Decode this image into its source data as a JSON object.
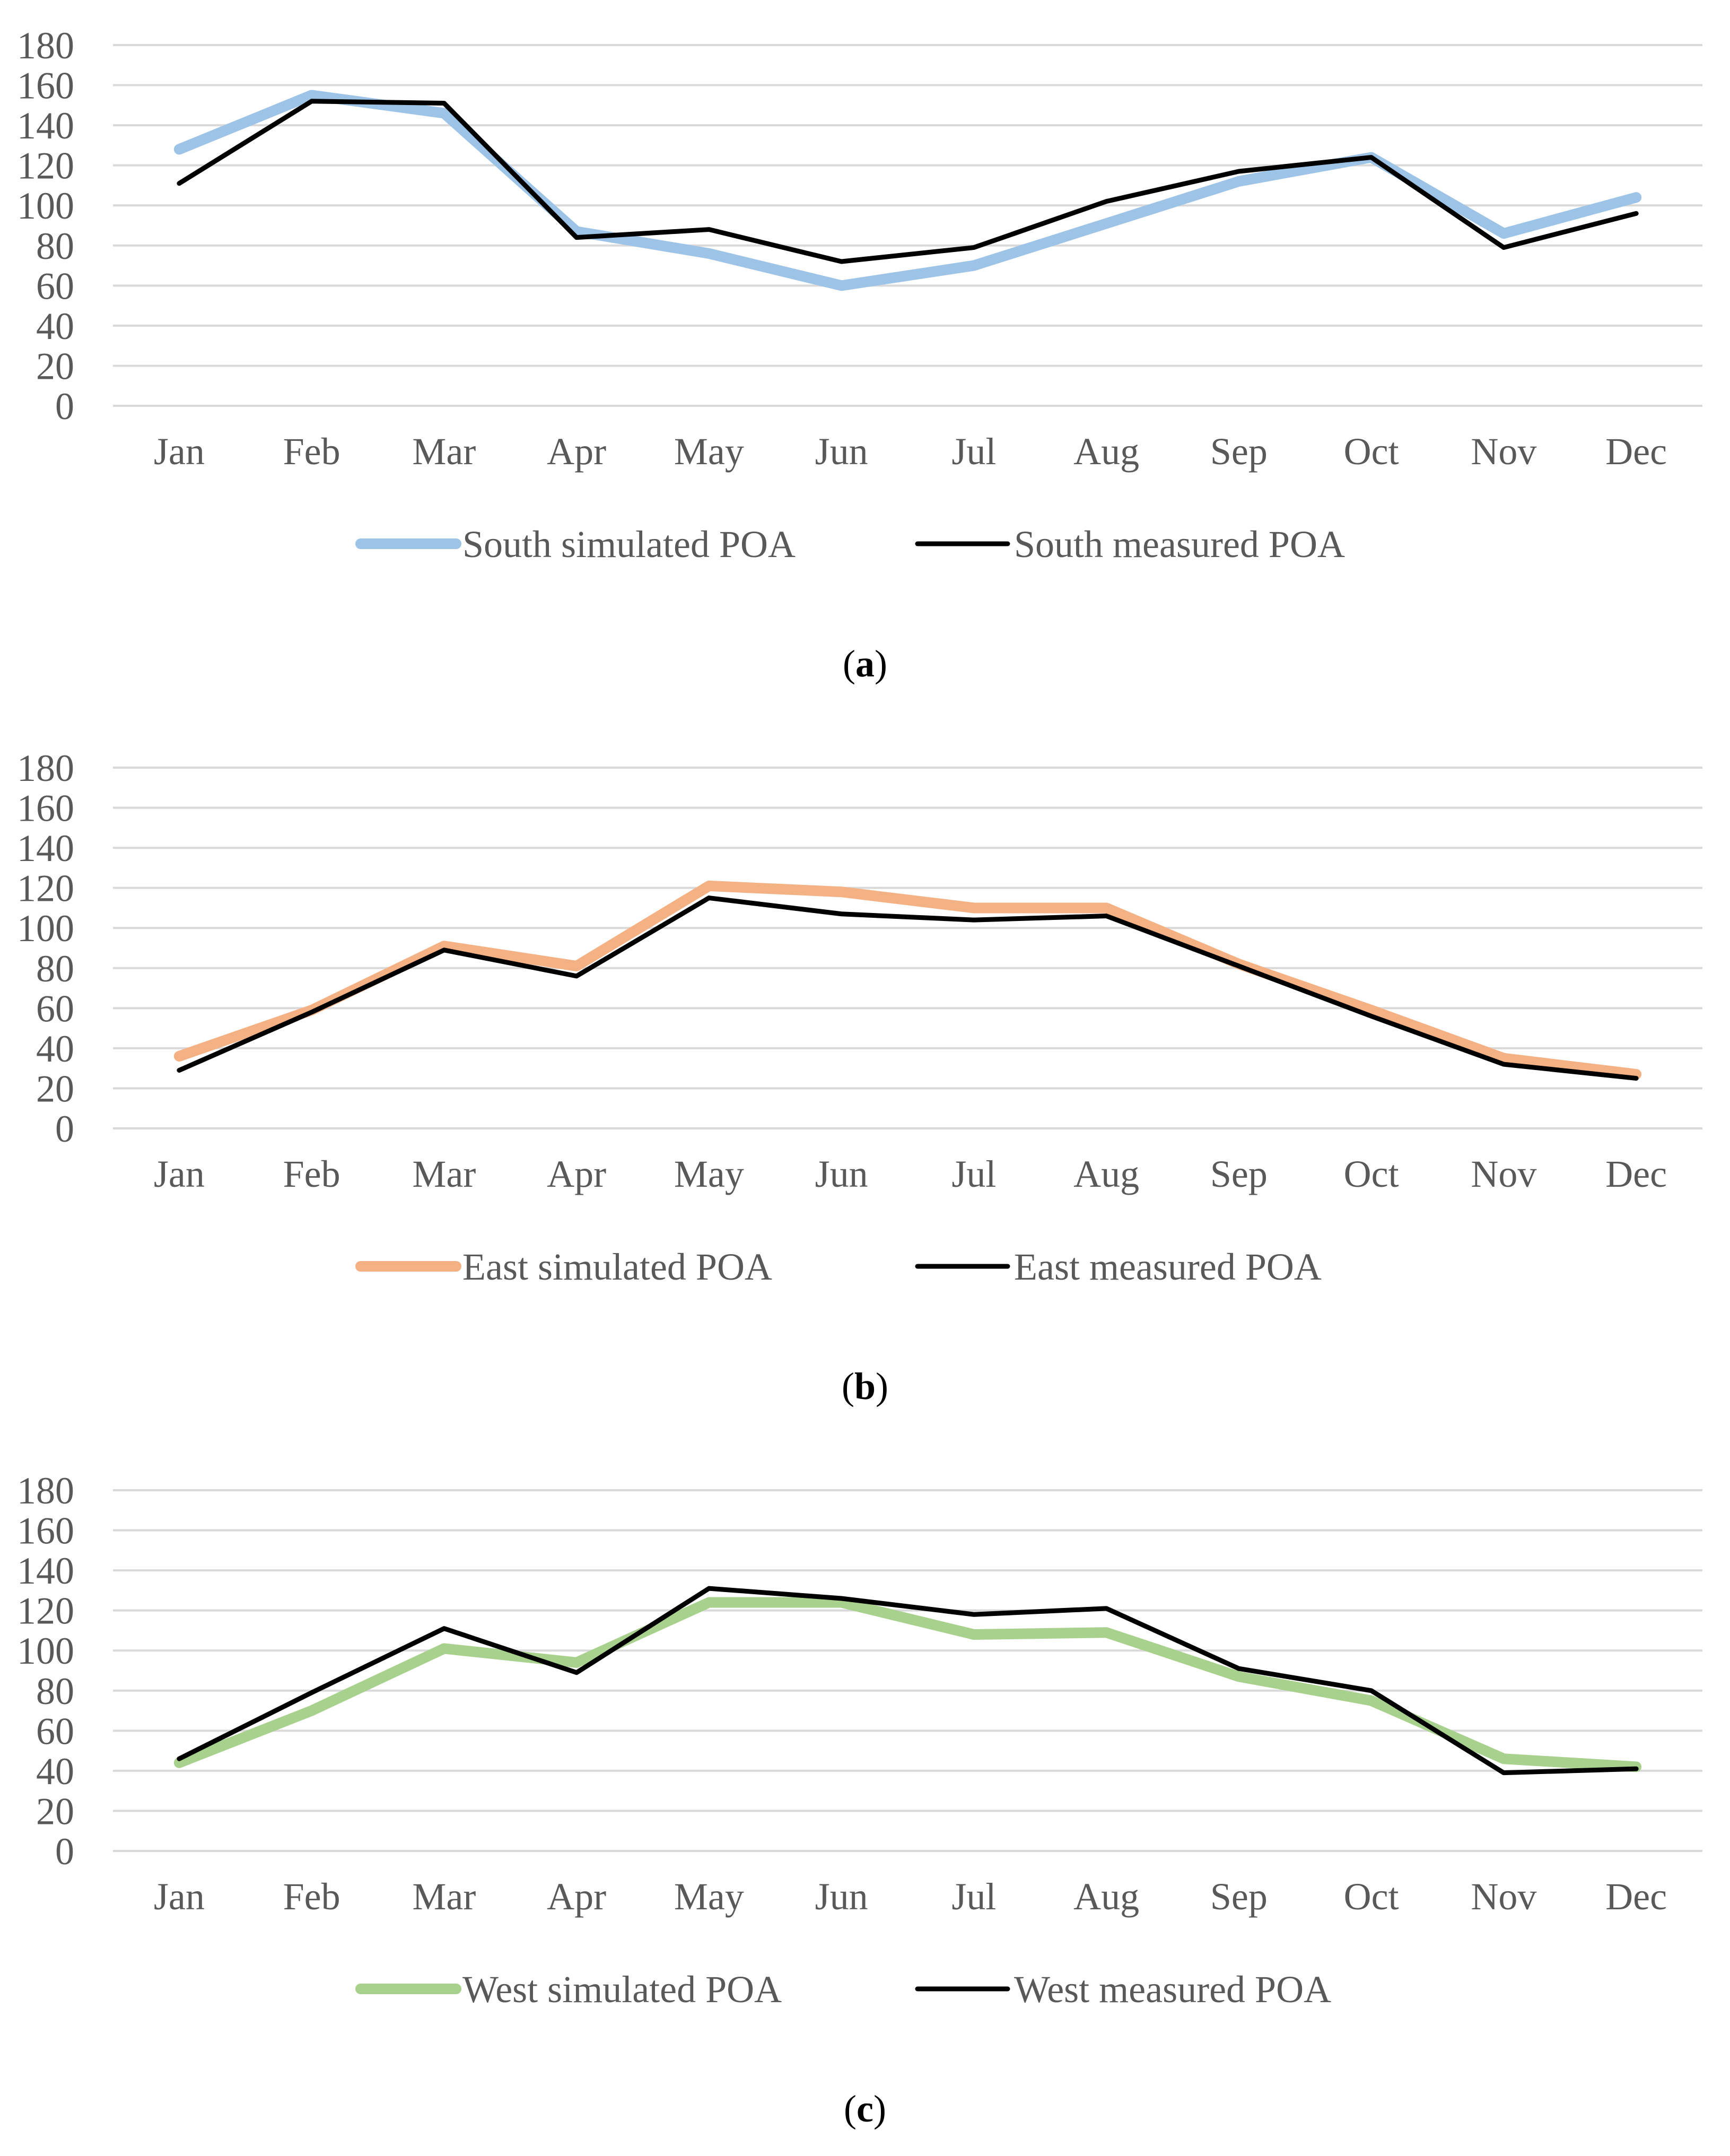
{
  "figure": {
    "panels": [
      {
        "caption_letter": "a",
        "caption_open": "(",
        "caption_close": ")"
      },
      {
        "caption_letter": "b",
        "caption_open": "(",
        "caption_close": ")"
      },
      {
        "caption_letter": "c",
        "caption_open": "(",
        "caption_close": ")"
      }
    ]
  },
  "chart_data": [
    {
      "type": "line",
      "title": "",
      "xlabel": "",
      "ylabel": "",
      "categories": [
        "Jan",
        "Feb",
        "Mar",
        "Apr",
        "May",
        "Jun",
        "Jul",
        "Aug",
        "Sep",
        "Oct",
        "Nov",
        "Dec"
      ],
      "ylim": [
        0,
        180
      ],
      "yticks": [
        0,
        20,
        40,
        60,
        80,
        100,
        120,
        140,
        160,
        180
      ],
      "grid": true,
      "legend_position": "bottom",
      "series": [
        {
          "name": "South simulated POA",
          "color": "#9DC3E6",
          "values": [
            128,
            155,
            146,
            87,
            76,
            60,
            70,
            91,
            112,
            124,
            86,
            104
          ]
        },
        {
          "name": "South measured POA",
          "color": "#000000",
          "values": [
            111,
            152,
            151,
            84,
            88,
            72,
            79,
            102,
            117,
            124,
            79,
            96
          ]
        }
      ]
    },
    {
      "type": "line",
      "title": "",
      "xlabel": "",
      "ylabel": "",
      "categories": [
        "Jan",
        "Feb",
        "Mar",
        "Apr",
        "May",
        "Jun",
        "Jul",
        "Aug",
        "Sep",
        "Oct",
        "Nov",
        "Dec"
      ],
      "ylim": [
        0,
        180
      ],
      "yticks": [
        0,
        20,
        40,
        60,
        80,
        100,
        120,
        140,
        160,
        180
      ],
      "grid": true,
      "legend_position": "bottom",
      "series": [
        {
          "name": "East simulated POA",
          "color": "#F4B183",
          "values": [
            36,
            59,
            91,
            81,
            121,
            118,
            110,
            110,
            82,
            59,
            35,
            27
          ]
        },
        {
          "name": "East measured POA",
          "color": "#000000",
          "values": [
            29,
            58,
            89,
            76,
            115,
            107,
            104,
            106,
            81,
            56,
            32,
            25
          ]
        }
      ]
    },
    {
      "type": "line",
      "title": "",
      "xlabel": "",
      "ylabel": "",
      "categories": [
        "Jan",
        "Feb",
        "Mar",
        "Apr",
        "May",
        "Jun",
        "Jul",
        "Aug",
        "Sep",
        "Oct",
        "Nov",
        "Dec"
      ],
      "ylim": [
        0,
        180
      ],
      "yticks": [
        0,
        20,
        40,
        60,
        80,
        100,
        120,
        140,
        160,
        180
      ],
      "grid": true,
      "legend_position": "bottom",
      "series": [
        {
          "name": "West simulated POA",
          "color": "#A9D18E",
          "values": [
            44,
            70,
            101,
            94,
            124,
            124,
            108,
            109,
            87,
            75,
            46,
            42
          ]
        },
        {
          "name": "West measured POA",
          "color": "#000000",
          "values": [
            46,
            79,
            111,
            89,
            131,
            126,
            118,
            121,
            91,
            80,
            39,
            41
          ]
        }
      ]
    }
  ]
}
